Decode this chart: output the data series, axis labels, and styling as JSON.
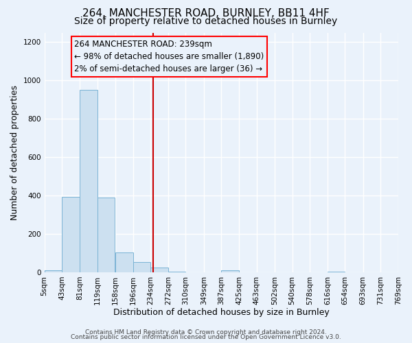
{
  "title": "264, MANCHESTER ROAD, BURNLEY, BB11 4HF",
  "subtitle": "Size of property relative to detached houses in Burnley",
  "xlabel": "Distribution of detached houses by size in Burnley",
  "ylabel": "Number of detached properties",
  "bar_left_edges": [
    5,
    43,
    81,
    119,
    158,
    196,
    234,
    272,
    310,
    349,
    387,
    425,
    463,
    502,
    540,
    578,
    616,
    654,
    693,
    731
  ],
  "bar_heights": [
    10,
    395,
    950,
    390,
    105,
    55,
    25,
    5,
    0,
    0,
    10,
    0,
    0,
    0,
    0,
    0,
    5,
    0,
    0,
    0
  ],
  "bin_width": 38,
  "tick_labels": [
    "5sqm",
    "43sqm",
    "81sqm",
    "119sqm",
    "158sqm",
    "196sqm",
    "234sqm",
    "272sqm",
    "310sqm",
    "349sqm",
    "387sqm",
    "425sqm",
    "463sqm",
    "502sqm",
    "540sqm",
    "578sqm",
    "616sqm",
    "654sqm",
    "693sqm",
    "731sqm",
    "769sqm"
  ],
  "bar_color": "#cce0f0",
  "bar_edge_color": "#7ab3d4",
  "vline_x": 239,
  "vline_color": "#cc0000",
  "ylim": [
    0,
    1250
  ],
  "yticks": [
    0,
    200,
    400,
    600,
    800,
    1000,
    1200
  ],
  "annotation_title": "264 MANCHESTER ROAD: 239sqm",
  "annotation_line1": "← 98% of detached houses are smaller (1,890)",
  "annotation_line2": "2% of semi-detached houses are larger (36) →",
  "footer_line1": "Contains HM Land Registry data © Crown copyright and database right 2024.",
  "footer_line2": "Contains public sector information licensed under the Open Government Licence v3.0.",
  "bg_color": "#eaf2fb",
  "grid_color": "#ffffff",
  "title_fontsize": 11,
  "subtitle_fontsize": 10,
  "axis_label_fontsize": 9,
  "tick_fontsize": 7.5,
  "footer_fontsize": 6.5,
  "annot_fontsize": 8.5
}
